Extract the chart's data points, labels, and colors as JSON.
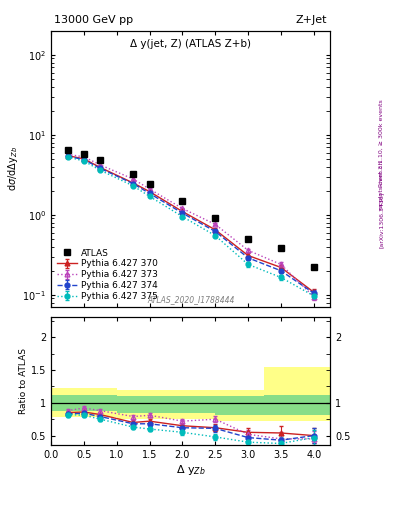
{
  "title_top": "13000 GeV pp",
  "title_right": "Z+Jet",
  "plot_title": "Δ y(jet, Z) (ATLAS Z+b)",
  "watermark": "ATLAS_2020_I1788444",
  "ylabel_main": "dσ/dΔy$_{Zb}$",
  "ylabel_ratio": "Ratio to ATLAS",
  "xlabel": "Δ y$_{Zb}$",
  "rivet_label": "Rivet 3.1.10, ≥ 300k events",
  "arxiv_label": "[arXiv:1306.3436]",
  "mcplots_label": "mcplots.cern.ch",
  "atlas_x": [
    0.25,
    0.5,
    0.75,
    1.25,
    1.5,
    2.0,
    2.5,
    3.0,
    3.5,
    4.0
  ],
  "atlas_y": [
    6.5,
    5.8,
    4.8,
    3.2,
    2.4,
    1.5,
    0.9,
    0.5,
    0.38,
    0.22
  ],
  "py370_x": [
    0.25,
    0.5,
    0.75,
    1.25,
    1.5,
    2.0,
    2.5,
    3.0,
    3.5,
    4.0
  ],
  "py370_y": [
    5.5,
    5.0,
    3.9,
    2.5,
    1.95,
    1.1,
    0.65,
    0.31,
    0.22,
    0.108
  ],
  "py370_yerr": [
    0.08,
    0.07,
    0.06,
    0.05,
    0.04,
    0.03,
    0.025,
    0.02,
    0.015,
    0.01
  ],
  "py373_x": [
    0.25,
    0.5,
    0.75,
    1.25,
    1.5,
    2.0,
    2.5,
    3.0,
    3.5,
    4.0
  ],
  "py373_y": [
    5.7,
    5.3,
    4.2,
    2.8,
    2.1,
    1.2,
    0.76,
    0.36,
    0.24,
    0.095
  ],
  "py373_yerr": [
    0.07,
    0.06,
    0.05,
    0.04,
    0.035,
    0.03,
    0.022,
    0.018,
    0.014,
    0.009
  ],
  "py374_x": [
    0.25,
    0.5,
    0.75,
    1.25,
    1.5,
    2.0,
    2.5,
    3.0,
    3.5,
    4.0
  ],
  "py374_y": [
    5.4,
    4.9,
    3.8,
    2.45,
    1.85,
    1.05,
    0.62,
    0.29,
    0.2,
    0.105
  ],
  "py374_yerr": [
    0.07,
    0.06,
    0.05,
    0.04,
    0.035,
    0.03,
    0.022,
    0.018,
    0.014,
    0.009
  ],
  "py375_x": [
    0.25,
    0.5,
    0.75,
    1.25,
    1.5,
    2.0,
    2.5,
    3.0,
    3.5,
    4.0
  ],
  "py375_y": [
    5.3,
    4.7,
    3.6,
    2.3,
    1.7,
    0.95,
    0.55,
    0.24,
    0.165,
    0.097
  ],
  "py375_yerr": [
    0.07,
    0.06,
    0.05,
    0.04,
    0.035,
    0.03,
    0.022,
    0.018,
    0.014,
    0.009
  ],
  "ratio_x": [
    0.25,
    0.5,
    0.75,
    1.25,
    1.5,
    2.0,
    2.5,
    3.0,
    3.5,
    4.0
  ],
  "ratio_370_y": [
    0.85,
    0.86,
    0.82,
    0.7,
    0.72,
    0.65,
    0.62,
    0.55,
    0.54,
    0.5
  ],
  "ratio_370_yerr": [
    0.03,
    0.03,
    0.03,
    0.03,
    0.03,
    0.04,
    0.05,
    0.07,
    0.1,
    0.12
  ],
  "ratio_373_y": [
    0.88,
    0.92,
    0.88,
    0.79,
    0.81,
    0.72,
    0.75,
    0.52,
    0.45,
    0.45
  ],
  "ratio_373_yerr": [
    0.03,
    0.03,
    0.03,
    0.03,
    0.03,
    0.04,
    0.05,
    0.07,
    0.1,
    0.12
  ],
  "ratio_374_y": [
    0.83,
    0.84,
    0.79,
    0.68,
    0.68,
    0.62,
    0.61,
    0.47,
    0.43,
    0.5
  ],
  "ratio_374_yerr": [
    0.03,
    0.03,
    0.03,
    0.03,
    0.03,
    0.04,
    0.05,
    0.07,
    0.1,
    0.12
  ],
  "ratio_375_y": [
    0.82,
    0.81,
    0.75,
    0.63,
    0.6,
    0.55,
    0.48,
    0.4,
    0.38,
    0.47
  ],
  "ratio_375_yerr": [
    0.03,
    0.03,
    0.03,
    0.03,
    0.03,
    0.04,
    0.05,
    0.07,
    0.1,
    0.12
  ],
  "band_x_edges": [
    0.0,
    0.5,
    1.0,
    2.5,
    3.25,
    4.25
  ],
  "band_yellow_lo": [
    0.78,
    0.78,
    0.75,
    0.72,
    0.72,
    0.72
  ],
  "band_yellow_hi": [
    1.22,
    1.22,
    1.2,
    1.2,
    1.55,
    1.75
  ],
  "band_green_lo": [
    0.88,
    0.88,
    0.85,
    0.82,
    0.82,
    0.82
  ],
  "band_green_hi": [
    1.12,
    1.12,
    1.1,
    1.1,
    1.12,
    1.12
  ],
  "color_atlas": "#000000",
  "color_370": "#cc2222",
  "color_373": "#bb44bb",
  "color_374": "#2244cc",
  "color_375": "#00bbbb",
  "xlim": [
    0.0,
    4.25
  ],
  "ylim_main": [
    0.07,
    200
  ],
  "ylim_ratio": [
    0.35,
    2.3
  ],
  "ratio_yticks": [
    0.5,
    1.0,
    1.5,
    2.0
  ],
  "ratio_yticklabels": [
    "0.5",
    "1",
    "1.5",
    "2"
  ]
}
